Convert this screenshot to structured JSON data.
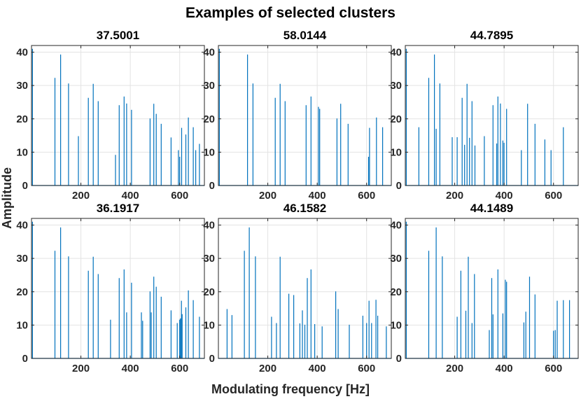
{
  "figure": {
    "title": "Examples of selected clusters",
    "xlabel": "Modulating frequency [Hz]",
    "ylabel": "Amplitude",
    "line_color": "#0072BD"
  },
  "chart_data": [
    {
      "type": "line",
      "title": "37.5001",
      "xlim": [
        0,
        700
      ],
      "ylim": [
        0,
        42
      ],
      "xticks": [
        200,
        400,
        600
      ],
      "yticks": [
        0,
        10,
        20,
        30,
        40
      ],
      "grid": true,
      "spikes": [
        [
          4,
          41
        ],
        [
          95,
          32.3
        ],
        [
          118,
          39.3
        ],
        [
          150,
          30.6
        ],
        [
          190,
          14.8
        ],
        [
          230,
          26.3
        ],
        [
          250,
          30.5
        ],
        [
          270,
          25.3
        ],
        [
          340,
          9.2
        ],
        [
          355,
          24.1
        ],
        [
          375,
          26.7
        ],
        [
          385,
          24.6
        ],
        [
          405,
          22.7
        ],
        [
          480,
          20.1
        ],
        [
          495,
          24.5
        ],
        [
          505,
          21.5
        ],
        [
          525,
          18.5
        ],
        [
          565,
          14.4
        ],
        [
          595,
          10.6
        ],
        [
          600,
          8.6
        ],
        [
          608,
          17.3
        ],
        [
          625,
          15.3
        ],
        [
          635,
          20.4
        ],
        [
          655,
          17.5
        ],
        [
          665,
          10.6
        ],
        [
          680,
          12.5
        ]
      ]
    },
    {
      "type": "line",
      "title": "58.0144",
      "xlim": [
        0,
        700
      ],
      "ylim": [
        0,
        42
      ],
      "xticks": [
        200,
        400,
        600
      ],
      "yticks": [
        0,
        10,
        20,
        30,
        40
      ],
      "grid": true,
      "spikes": [
        [
          4,
          41
        ],
        [
          118,
          39.3
        ],
        [
          140,
          30.6
        ],
        [
          230,
          26.3
        ],
        [
          250,
          30.5
        ],
        [
          270,
          25.3
        ],
        [
          355,
          24.1
        ],
        [
          375,
          26.7
        ],
        [
          405,
          23.6
        ],
        [
          410,
          23
        ],
        [
          480,
          20.1
        ],
        [
          495,
          24.5
        ],
        [
          525,
          18.5
        ],
        [
          608,
          8.6
        ],
        [
          612,
          17.3
        ],
        [
          640,
          20.4
        ],
        [
          665,
          17.5
        ]
      ]
    },
    {
      "type": "line",
      "title": "44.7895",
      "xlim": [
        0,
        700
      ],
      "ylim": [
        0,
        42
      ],
      "xticks": [
        200,
        400,
        600
      ],
      "yticks": [
        0,
        10,
        20,
        30,
        40
      ],
      "grid": true,
      "spikes": [
        [
          4,
          41
        ],
        [
          55,
          17.5
        ],
        [
          95,
          32.3
        ],
        [
          118,
          39.3
        ],
        [
          125,
          17
        ],
        [
          140,
          30.6
        ],
        [
          190,
          14.5
        ],
        [
          210,
          14.5
        ],
        [
          230,
          26.3
        ],
        [
          240,
          12.2
        ],
        [
          250,
          30.5
        ],
        [
          260,
          14.3
        ],
        [
          270,
          25.3
        ],
        [
          282,
          12
        ],
        [
          320,
          14.8
        ],
        [
          355,
          24.1
        ],
        [
          370,
          12.6
        ],
        [
          375,
          26.7
        ],
        [
          385,
          24.6
        ],
        [
          395,
          13.5
        ],
        [
          400,
          12.8
        ],
        [
          410,
          23
        ],
        [
          470,
          10.6
        ],
        [
          495,
          24.5
        ],
        [
          525,
          18.5
        ],
        [
          565,
          13.8
        ],
        [
          590,
          10.6
        ],
        [
          640,
          17.5
        ]
      ]
    },
    {
      "type": "line",
      "title": "36.1917",
      "xlim": [
        0,
        700
      ],
      "ylim": [
        0,
        42
      ],
      "xticks": [
        200,
        400,
        600
      ],
      "yticks": [
        0,
        10,
        20,
        30,
        40
      ],
      "grid": true,
      "spikes": [
        [
          4,
          41
        ],
        [
          95,
          32.3
        ],
        [
          118,
          39.3
        ],
        [
          150,
          30.6
        ],
        [
          230,
          26.3
        ],
        [
          250,
          30.5
        ],
        [
          270,
          25.3
        ],
        [
          320,
          11.6
        ],
        [
          355,
          24.1
        ],
        [
          375,
          26.7
        ],
        [
          385,
          13.8
        ],
        [
          405,
          22.7
        ],
        [
          445,
          13.8
        ],
        [
          450,
          11.3
        ],
        [
          480,
          20.1
        ],
        [
          485,
          13.8
        ],
        [
          495,
          24.5
        ],
        [
          505,
          21.5
        ],
        [
          525,
          18.5
        ],
        [
          565,
          14.4
        ],
        [
          590,
          10.6
        ],
        [
          600,
          11.6
        ],
        [
          603,
          12
        ],
        [
          607,
          17.3
        ],
        [
          610,
          13.3
        ],
        [
          625,
          15.3
        ],
        [
          635,
          20.4
        ],
        [
          655,
          17.5
        ],
        [
          680,
          12.5
        ]
      ]
    },
    {
      "type": "line",
      "title": "46.1582",
      "xlim": [
        0,
        700
      ],
      "ylim": [
        0,
        42
      ],
      "xticks": [
        200,
        400,
        600
      ],
      "yticks": [
        0,
        10,
        20,
        30,
        40
      ],
      "grid": true,
      "spikes": [
        [
          35,
          14.8
        ],
        [
          55,
          13
        ],
        [
          105,
          32.3
        ],
        [
          125,
          39.3
        ],
        [
          150,
          30.6
        ],
        [
          215,
          12.5
        ],
        [
          235,
          10.6
        ],
        [
          250,
          30.5
        ],
        [
          285,
          19.4
        ],
        [
          305,
          19
        ],
        [
          330,
          10.5
        ],
        [
          340,
          14.4
        ],
        [
          350,
          10.1
        ],
        [
          360,
          24.1
        ],
        [
          375,
          26.7
        ],
        [
          390,
          10.3
        ],
        [
          420,
          9.6
        ],
        [
          475,
          20.1
        ],
        [
          485,
          14.8
        ],
        [
          530,
          10.1
        ],
        [
          585,
          12.8
        ],
        [
          600,
          10.6
        ],
        [
          610,
          17.3
        ],
        [
          620,
          10.6
        ],
        [
          638,
          17.6
        ],
        [
          645,
          12.8
        ],
        [
          680,
          9.6
        ]
      ]
    },
    {
      "type": "line",
      "title": "44.1489",
      "xlim": [
        0,
        700
      ],
      "ylim": [
        0,
        42
      ],
      "xticks": [
        200,
        400,
        600
      ],
      "yticks": [
        0,
        10,
        20,
        30,
        40
      ],
      "grid": true,
      "spikes": [
        [
          4,
          41
        ],
        [
          95,
          32.3
        ],
        [
          125,
          39.3
        ],
        [
          150,
          30.6
        ],
        [
          210,
          12.5
        ],
        [
          225,
          26.3
        ],
        [
          245,
          14.3
        ],
        [
          255,
          30.5
        ],
        [
          270,
          10.6
        ],
        [
          280,
          25.3
        ],
        [
          340,
          8.5
        ],
        [
          350,
          24.1
        ],
        [
          355,
          13.2
        ],
        [
          375,
          26.7
        ],
        [
          395,
          13.5
        ],
        [
          405,
          23.6
        ],
        [
          410,
          23
        ],
        [
          480,
          10.8
        ],
        [
          488,
          14
        ],
        [
          503,
          24.5
        ],
        [
          525,
          19.2
        ],
        [
          600,
          8.3
        ],
        [
          607,
          8.5
        ],
        [
          615,
          17.3
        ],
        [
          640,
          17.5
        ],
        [
          665,
          17.5
        ]
      ]
    }
  ]
}
